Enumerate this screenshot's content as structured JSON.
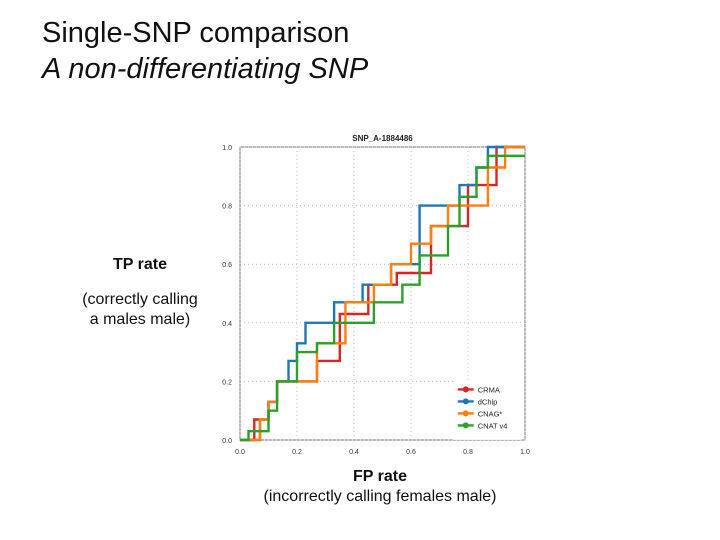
{
  "slide": {
    "title": "Single-SNP comparison",
    "subtitle": "A non-differentiating SNP"
  },
  "labels": {
    "y_main": "TP rate",
    "y_sub_line1": "(correctly calling",
    "y_sub_line2": "a males male)",
    "x_main": "FP rate",
    "x_sub": "(incorrectly calling females male)"
  },
  "chart_data": {
    "type": "line",
    "title": "SNP_A-1884486",
    "xlim": [
      0,
      1
    ],
    "ylim": [
      0,
      1
    ],
    "xticks": [
      "0.0",
      "0.2",
      "0.4",
      "0.6",
      "0.8",
      "1.0"
    ],
    "yticks": [
      "0.0",
      "0.2",
      "0.4",
      "0.6",
      "0.8",
      "1.0"
    ],
    "grid": true,
    "legend_position": "bottom-right",
    "series": [
      {
        "name": "CRMA",
        "color": "#d62728",
        "x": [
          0,
          0.05,
          0.05,
          0.1,
          0.1,
          0.13,
          0.13,
          0.17,
          0.17,
          0.27,
          0.27,
          0.35,
          0.35,
          0.45,
          0.45,
          0.55,
          0.55,
          0.67,
          0.67,
          0.8,
          0.8,
          0.9,
          0.9,
          1.0
        ],
        "y": [
          0,
          0,
          0.07,
          0.07,
          0.13,
          0.13,
          0.2,
          0.2,
          0.2,
          0.2,
          0.27,
          0.27,
          0.43,
          0.43,
          0.53,
          0.53,
          0.57,
          0.57,
          0.73,
          0.73,
          0.87,
          0.87,
          1.0,
          1.0
        ]
      },
      {
        "name": "dChip",
        "color": "#1f77b4",
        "x": [
          0,
          0.07,
          0.07,
          0.1,
          0.1,
          0.13,
          0.13,
          0.17,
          0.17,
          0.2,
          0.2,
          0.23,
          0.23,
          0.33,
          0.33,
          0.43,
          0.43,
          0.53,
          0.53,
          0.63,
          0.63,
          0.77,
          0.77,
          0.83,
          0.83,
          0.87,
          0.87,
          1.0
        ],
        "y": [
          0,
          0,
          0.07,
          0.07,
          0.13,
          0.13,
          0.2,
          0.2,
          0.27,
          0.27,
          0.33,
          0.33,
          0.4,
          0.4,
          0.47,
          0.47,
          0.53,
          0.53,
          0.6,
          0.6,
          0.8,
          0.8,
          0.87,
          0.87,
          0.93,
          0.93,
          1.0,
          1.0
        ]
      },
      {
        "name": "CNAG*",
        "color": "#ff7f0e",
        "x": [
          0,
          0.07,
          0.07,
          0.1,
          0.1,
          0.13,
          0.13,
          0.27,
          0.27,
          0.37,
          0.37,
          0.47,
          0.47,
          0.53,
          0.53,
          0.6,
          0.6,
          0.67,
          0.67,
          0.73,
          0.73,
          0.87,
          0.87,
          0.93,
          0.93,
          1.0
        ],
        "y": [
          0,
          0,
          0.07,
          0.07,
          0.13,
          0.13,
          0.2,
          0.2,
          0.33,
          0.33,
          0.47,
          0.47,
          0.53,
          0.53,
          0.6,
          0.6,
          0.67,
          0.67,
          0.73,
          0.73,
          0.8,
          0.8,
          0.93,
          0.93,
          1.0,
          1.0
        ]
      },
      {
        "name": "CNAT v4",
        "color": "#2ca02c",
        "x": [
          0,
          0.03,
          0.03,
          0.1,
          0.1,
          0.13,
          0.13,
          0.2,
          0.2,
          0.27,
          0.27,
          0.33,
          0.33,
          0.47,
          0.47,
          0.57,
          0.57,
          0.63,
          0.63,
          0.73,
          0.73,
          0.77,
          0.77,
          0.83,
          0.83,
          0.87,
          0.87,
          1.0
        ],
        "y": [
          0,
          0,
          0.03,
          0.03,
          0.1,
          0.1,
          0.2,
          0.2,
          0.3,
          0.3,
          0.33,
          0.33,
          0.4,
          0.4,
          0.47,
          0.47,
          0.53,
          0.53,
          0.63,
          0.63,
          0.73,
          0.73,
          0.83,
          0.83,
          0.93,
          0.93,
          0.97,
          0.97
        ]
      }
    ]
  }
}
